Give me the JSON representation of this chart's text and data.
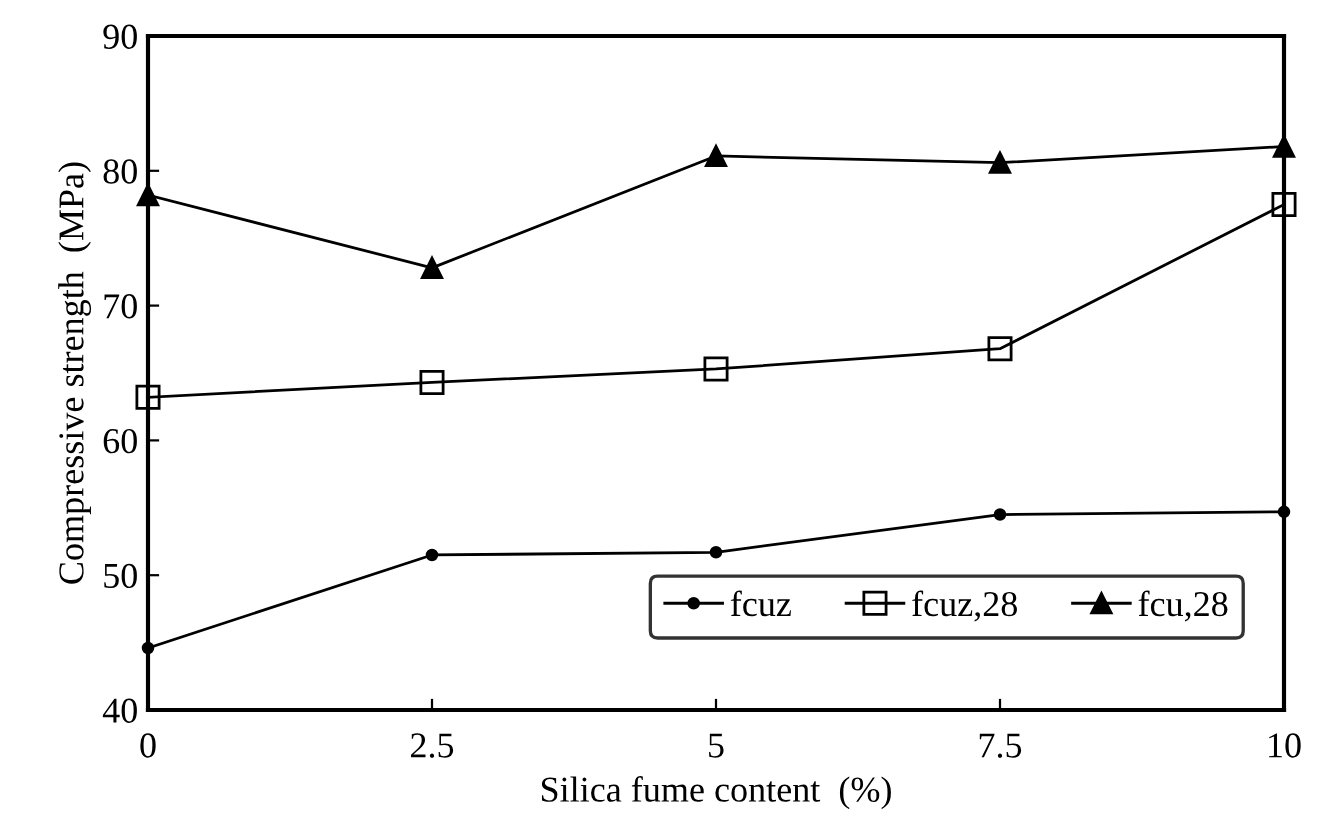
{
  "chart_data": {
    "type": "line",
    "xlabel": "Silica fume content  (%)",
    "ylabel": "Compressive strength  (MPa)",
    "x": [
      0,
      2.5,
      5,
      7.5,
      10
    ],
    "series": [
      {
        "name": "fcuz",
        "color": "#000000",
        "marker": "circle",
        "values": [
          44.6,
          51.5,
          51.7,
          54.5,
          54.7
        ]
      },
      {
        "name": "fcuz,28",
        "color": "#000000",
        "marker": "square",
        "values": [
          63.2,
          64.3,
          65.3,
          66.8,
          77.5
        ]
      },
      {
        "name": "fcu,28",
        "color": "#000000",
        "marker": "triangle",
        "values": [
          78.2,
          72.8,
          81.1,
          80.6,
          81.8
        ]
      }
    ],
    "xlim": [
      0,
      10
    ],
    "xticks": [
      0,
      2.5,
      5,
      7.5,
      10
    ],
    "ylim": [
      40,
      90
    ],
    "yticks": [
      40,
      50,
      60,
      70,
      80,
      90
    ],
    "grid": false,
    "legend": "bottom right",
    "line_style": "solid"
  }
}
